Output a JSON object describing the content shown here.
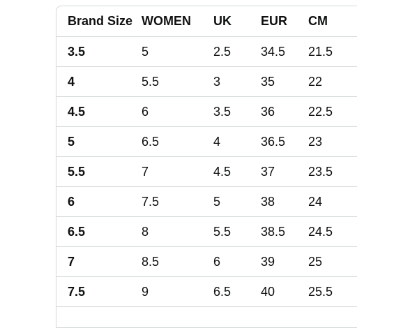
{
  "table": {
    "headers": [
      "Brand Size",
      "WOMEN",
      "UK",
      "EUR",
      "CM"
    ],
    "rows": [
      [
        "3.5",
        "5",
        "2.5",
        "34.5",
        "21.5"
      ],
      [
        "4",
        "5.5",
        "3",
        "35",
        "22"
      ],
      [
        "4.5",
        "6",
        "3.5",
        "36",
        "22.5"
      ],
      [
        "5",
        "6.5",
        "4",
        "36.5",
        "23"
      ],
      [
        "5.5",
        "7",
        "4.5",
        "37",
        "23.5"
      ],
      [
        "6",
        "7.5",
        "5",
        "38",
        "24"
      ],
      [
        "6.5",
        "8",
        "5.5",
        "38.5",
        "24.5"
      ],
      [
        "7",
        "8.5",
        "6",
        "39",
        "25"
      ],
      [
        "7.5",
        "9",
        "6.5",
        "40",
        "25.5"
      ]
    ]
  },
  "colors": {
    "border": "#d5d9d9",
    "text": "#0f1111"
  }
}
